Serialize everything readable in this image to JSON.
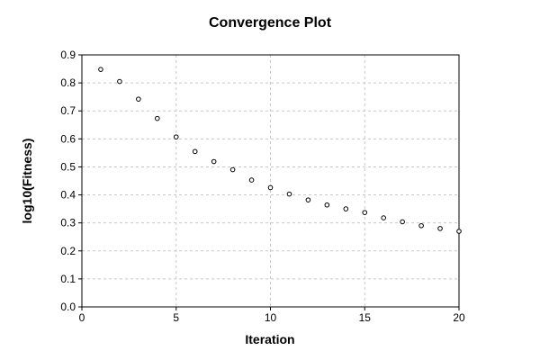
{
  "chart_data": {
    "type": "scatter",
    "title": "Convergence Plot",
    "xlabel": "Iteration",
    "ylabel": "log10(Fitness)",
    "xlim": [
      0,
      20
    ],
    "ylim": [
      0,
      0.9
    ],
    "xticks": [
      "0",
      "5",
      "10",
      "15",
      "20"
    ],
    "yticks": [
      "0.0",
      "0.1",
      "0.2",
      "0.3",
      "0.4",
      "0.5",
      "0.6",
      "0.7",
      "0.8",
      "0.9"
    ],
    "grid": true,
    "series": [
      {
        "x": [
          1,
          2,
          3,
          4,
          5,
          6,
          7,
          8,
          9,
          10,
          11,
          12,
          13,
          14,
          15,
          16,
          17,
          18,
          19,
          20
        ],
        "y": [
          0.848,
          0.805,
          0.742,
          0.673,
          0.607,
          0.555,
          0.519,
          0.49,
          0.453,
          0.426,
          0.403,
          0.382,
          0.364,
          0.35,
          0.337,
          0.318,
          0.304,
          0.29,
          0.28,
          0.27
        ]
      }
    ],
    "marker_color": "#000000",
    "grid_color": "#c8c8c8"
  }
}
